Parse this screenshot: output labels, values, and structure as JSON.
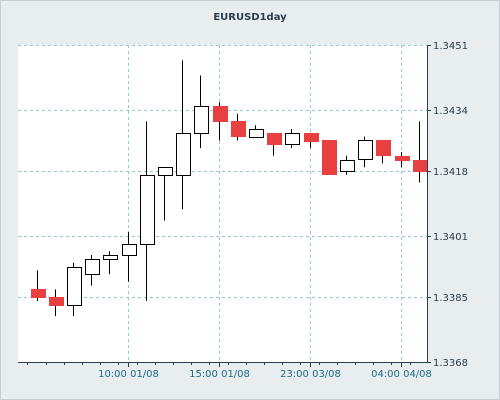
{
  "chart_data": {
    "type": "candlestick",
    "title": "EURUSD1day",
    "ylim": [
      1.3368,
      1.3451
    ],
    "y_ticks": [
      "1.3451",
      "1.3434",
      "1.3418",
      "1.3401",
      "1.3385",
      "1.3368"
    ],
    "x_ticks": [
      {
        "label": "10:00 01/08",
        "index": 5
      },
      {
        "label": "15:00 01/08",
        "index": 10
      },
      {
        "label": "23:00 03/08",
        "index": 15
      },
      {
        "label": "04:00 04/08",
        "index": 20
      }
    ],
    "grid": true,
    "colors": {
      "up": "#ffffff",
      "down": "#e84040",
      "outline": "#000000",
      "grid": "#8ccad6",
      "background": "#ffffff"
    },
    "candles": [
      {
        "open": 1.3387,
        "high": 1.3392,
        "low": 1.3384,
        "close": 1.3385
      },
      {
        "open": 1.3385,
        "high": 1.3387,
        "low": 1.338,
        "close": 1.3383
      },
      {
        "open": 1.3383,
        "high": 1.3394,
        "low": 1.338,
        "close": 1.3393
      },
      {
        "open": 1.3391,
        "high": 1.3396,
        "low": 1.3388,
        "close": 1.3395
      },
      {
        "open": 1.3395,
        "high": 1.3397,
        "low": 1.3391,
        "close": 1.3396
      },
      {
        "open": 1.3396,
        "high": 1.3402,
        "low": 1.3389,
        "close": 1.3399
      },
      {
        "open": 1.3399,
        "high": 1.3431,
        "low": 1.3384,
        "close": 1.3417
      },
      {
        "open": 1.3417,
        "high": 1.3419,
        "low": 1.3405,
        "close": 1.3419
      },
      {
        "open": 1.3417,
        "high": 1.3447,
        "low": 1.3408,
        "close": 1.3428
      },
      {
        "open": 1.3428,
        "high": 1.3443,
        "low": 1.3424,
        "close": 1.3435
      },
      {
        "open": 1.3435,
        "high": 1.3436,
        "low": 1.3426,
        "close": 1.3431
      },
      {
        "open": 1.3431,
        "high": 1.3433,
        "low": 1.3426,
        "close": 1.3427
      },
      {
        "open": 1.3427,
        "high": 1.343,
        "low": 1.3427,
        "close": 1.3429
      },
      {
        "open": 1.3428,
        "high": 1.3428,
        "low": 1.3422,
        "close": 1.3425
      },
      {
        "open": 1.3425,
        "high": 1.3429,
        "low": 1.3424,
        "close": 1.3428
      },
      {
        "open": 1.3428,
        "high": 1.3428,
        "low": 1.3424,
        "close": 1.3426
      },
      {
        "open": 1.3426,
        "high": 1.3426,
        "low": 1.3417,
        "close": 1.3417
      },
      {
        "open": 1.3418,
        "high": 1.3422,
        "low": 1.3417,
        "close": 1.3421
      },
      {
        "open": 1.3421,
        "high": 1.3427,
        "low": 1.3419,
        "close": 1.3426
      },
      {
        "open": 1.3426,
        "high": 1.3426,
        "low": 1.342,
        "close": 1.3422
      },
      {
        "open": 1.3422,
        "high": 1.3423,
        "low": 1.3419,
        "close": 1.3421
      },
      {
        "open": 1.3421,
        "high": 1.3431,
        "low": 1.3415,
        "close": 1.3418
      }
    ]
  }
}
